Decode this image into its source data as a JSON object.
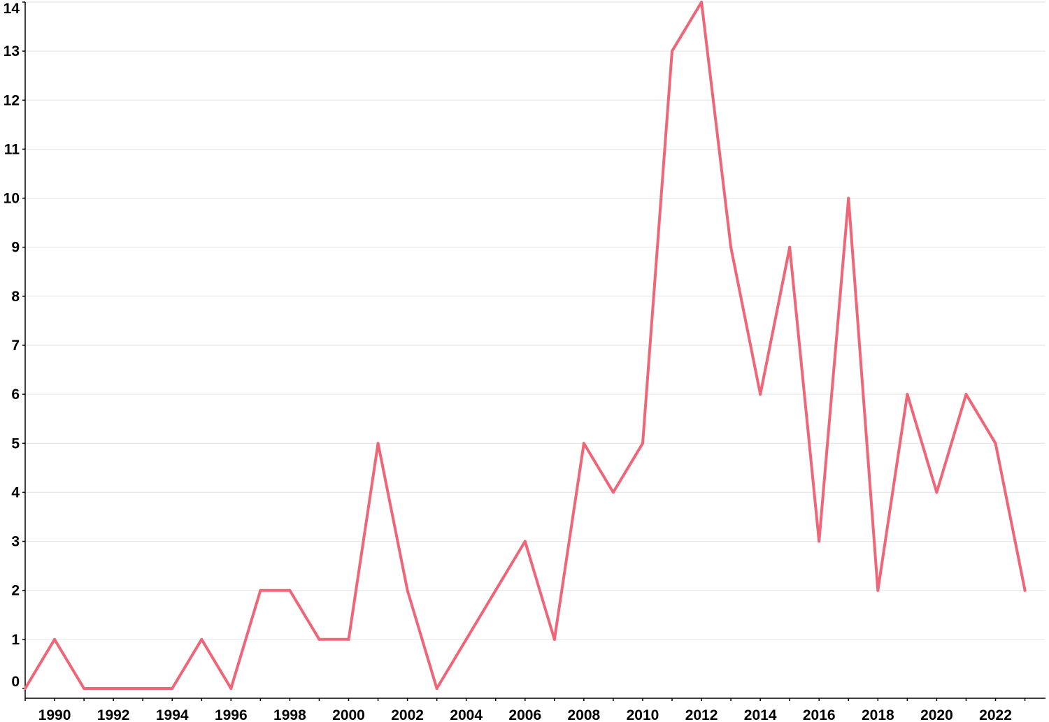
{
  "chart_data": {
    "type": "line",
    "title": "",
    "xlabel": "",
    "ylabel": "",
    "x": [
      1989,
      1990,
      1991,
      1992,
      1993,
      1994,
      1995,
      1996,
      1997,
      1998,
      1999,
      2000,
      2001,
      2002,
      2003,
      2004,
      2005,
      2006,
      2007,
      2008,
      2009,
      2010,
      2011,
      2012,
      2013,
      2014,
      2015,
      2016,
      2017,
      2018,
      2019,
      2020,
      2021,
      2022,
      2023
    ],
    "series": [
      {
        "values": [
          0,
          1,
          0,
          0,
          0,
          0,
          1,
          0,
          2,
          2,
          1,
          1,
          5,
          2,
          0,
          1,
          2,
          3,
          1,
          5,
          4,
          5,
          13,
          14,
          9,
          6,
          9,
          3,
          10,
          2,
          6,
          4,
          6,
          5,
          2
        ]
      }
    ],
    "x_ticks": [
      "1990",
      "1992",
      "1994",
      "1996",
      "1998",
      "2000",
      "2002",
      "2004",
      "2006",
      "2008",
      "2010",
      "2012",
      "2014",
      "2016",
      "2018",
      "2020",
      "2022"
    ],
    "y_ticks": [
      "0",
      "1",
      "2",
      "3",
      "4",
      "5",
      "6",
      "7",
      "8",
      "9",
      "10",
      "11",
      "12",
      "13",
      "14"
    ],
    "xlim": [
      1989,
      2023.7
    ],
    "ylim": [
      -0.2,
      14
    ],
    "grid": "horizontal",
    "line_color": "#ee6677",
    "grid_color": "#e8e8e8",
    "axis_color": "#000000"
  }
}
